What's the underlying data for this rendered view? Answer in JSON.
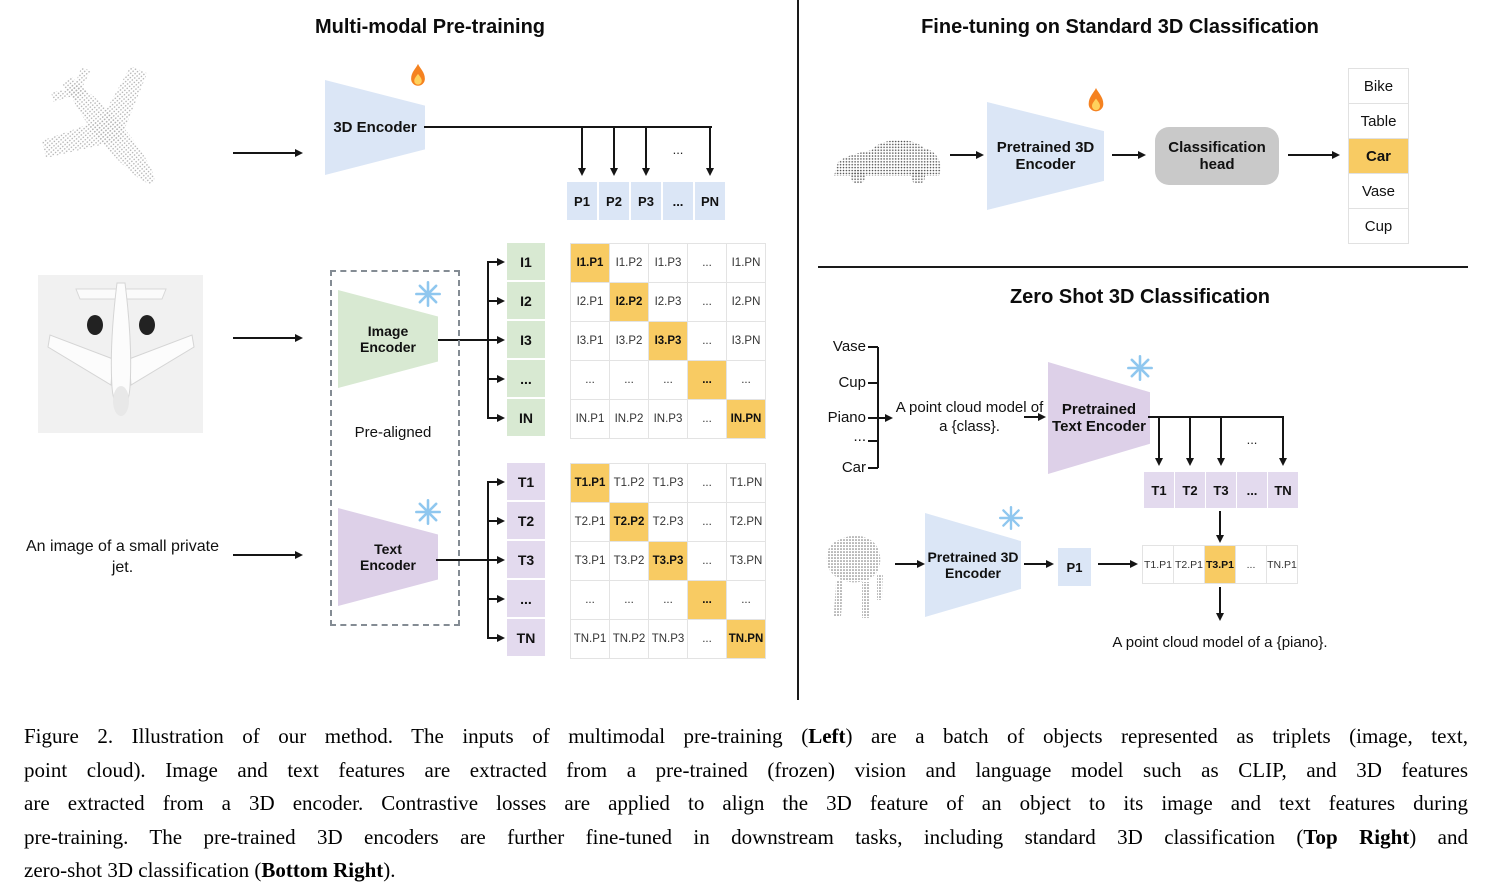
{
  "colors": {
    "blue": "#dbe6f6",
    "green": "#d8e9d2",
    "purple": "#ddd0e8",
    "lav": "#e3daee",
    "orange": "#f8cb63",
    "gray": "#c9c9c9"
  },
  "left": {
    "title": "Multi-modal Pre-training",
    "encoder_3d": "3D Encoder",
    "image_encoder": "Image Encoder",
    "text_encoder": "Text Encoder",
    "pre_aligned": "Pre-aligned",
    "image_caption": "An image of a small private jet.",
    "p_ellipsis": "...",
    "p_row": [
      "P1",
      "P2",
      "P3",
      "...",
      "PN"
    ],
    "i_labels": [
      "I1",
      "I2",
      "I3",
      "...",
      "IN"
    ],
    "t_labels": [
      "T1",
      "T2",
      "T3",
      "...",
      "TN"
    ],
    "i_matrix": [
      [
        "I1.P1",
        "I1.P2",
        "I1.P3",
        "...",
        "I1.PN"
      ],
      [
        "I2.P1",
        "I2.P2",
        "I2.P3",
        "...",
        "I2.PN"
      ],
      [
        "I3.P1",
        "I3.P2",
        "I3.P3",
        "...",
        "I3.PN"
      ],
      [
        "...",
        "...",
        "...",
        "...",
        "..."
      ],
      [
        "IN.P1",
        "IN.P2",
        "IN.P3",
        "...",
        "IN.PN"
      ]
    ],
    "t_matrix": [
      [
        "T1.P1",
        "T1.P2",
        "T1.P3",
        "...",
        "T1.PN"
      ],
      [
        "T2.P1",
        "T2.P2",
        "T2.P3",
        "...",
        "T2.PN"
      ],
      [
        "T3.P1",
        "T3.P2",
        "T3.P3",
        "...",
        "T3.PN"
      ],
      [
        "...",
        "...",
        "...",
        "...",
        "..."
      ],
      [
        "TN.P1",
        "TN.P2",
        "TN.P3",
        "...",
        "TN.PN"
      ]
    ]
  },
  "top_right": {
    "title": "Fine-tuning on Standard 3D Classification",
    "encoder": "Pretrained 3D Encoder",
    "head": "Classification head",
    "classes": [
      "Bike",
      "Table",
      "Car",
      "Vase",
      "Cup"
    ],
    "highlight_index": 2
  },
  "bottom_right": {
    "title": "Zero Shot 3D Classification",
    "classes": [
      "Vase",
      "Cup",
      "Piano",
      "...",
      "Car"
    ],
    "prompt": "A point cloud model of a {class}.",
    "text_encoder": "Pretrained Text Encoder",
    "encoder_3d": "Pretrained 3D Encoder",
    "t_ellipsis": "...",
    "t_row": [
      "T1",
      "T2",
      "T3",
      "...",
      "TN"
    ],
    "p_cell": "P1",
    "tp_row": [
      "T1.P1",
      "T2.P1",
      "T3.P1",
      "...",
      "TN.P1"
    ],
    "tp_highlight_index": 2,
    "result": "A point cloud model of a {piano}."
  },
  "caption_lines": [
    "Figure 2. Illustration of our method. The inputs of multimodal pre-training (**Left**) are a batch of objects represented as triplets (image, text,",
    "point cloud). Image and text features are extracted from a pre-trained (frozen) vision and language model such as CLIP, and 3D features",
    "are extracted from a 3D encoder. Contrastive losses are applied to align the 3D feature of an object to its image and text features during",
    "pre-training. The pre-trained 3D encoders are further fine-tuned in downstream tasks, including standard 3D classification (**Top Right**) and",
    "zero-shot 3D classification (**Bottom Right**)."
  ]
}
